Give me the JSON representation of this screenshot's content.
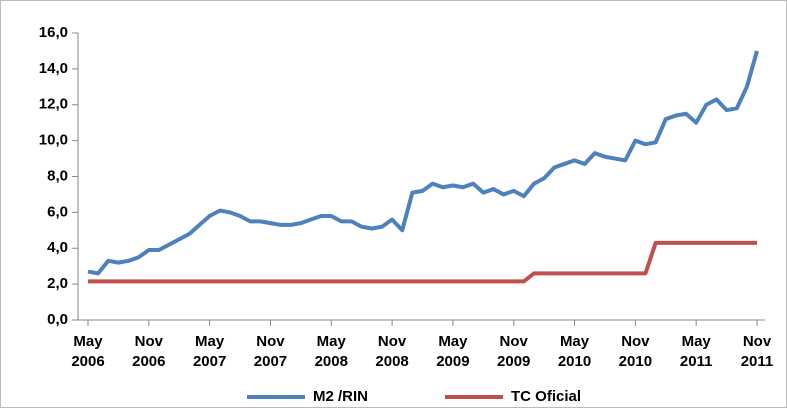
{
  "chart_data": {
    "type": "line",
    "categories": [
      "May 2006",
      null,
      null,
      null,
      null,
      null,
      "Nov 2006",
      null,
      null,
      null,
      null,
      null,
      "May 2007",
      null,
      null,
      null,
      null,
      null,
      "Nov 2007",
      null,
      null,
      null,
      null,
      null,
      "May 2008",
      null,
      null,
      null,
      null,
      null,
      "Nov 2008",
      null,
      null,
      null,
      null,
      null,
      "May 2009",
      null,
      null,
      null,
      null,
      null,
      "Nov 2009",
      null,
      null,
      null,
      null,
      null,
      "May 2010",
      null,
      null,
      null,
      null,
      null,
      "Nov 2010",
      null,
      null,
      null,
      null,
      null,
      "May 2011",
      null,
      null,
      null,
      null,
      null,
      "Nov 2011"
    ],
    "series": [
      {
        "name": "M2 /RIN",
        "color": "#4f81bd",
        "values": [
          2.7,
          2.6,
          3.3,
          3.2,
          3.3,
          3.5,
          3.9,
          3.9,
          4.2,
          4.5,
          4.8,
          5.3,
          5.8,
          6.1,
          6.0,
          5.8,
          5.5,
          5.5,
          5.4,
          5.3,
          5.3,
          5.4,
          5.6,
          5.8,
          5.8,
          5.5,
          5.5,
          5.2,
          5.1,
          5.2,
          5.6,
          5.0,
          7.1,
          7.2,
          7.6,
          7.4,
          7.5,
          7.4,
          7.6,
          7.1,
          7.3,
          7.0,
          7.2,
          6.9,
          7.6,
          7.9,
          8.5,
          8.7,
          8.9,
          8.7,
          9.3,
          9.1,
          9.0,
          8.9,
          10.0,
          9.8,
          9.9,
          11.2,
          11.4,
          11.5,
          11.0,
          12.0,
          12.3,
          11.7,
          11.8,
          13.0,
          15.0
        ]
      },
      {
        "name": "TC Oficial",
        "color": "#c0504d",
        "values": [
          2.15,
          2.15,
          2.15,
          2.15,
          2.15,
          2.15,
          2.15,
          2.15,
          2.15,
          2.15,
          2.15,
          2.15,
          2.15,
          2.15,
          2.15,
          2.15,
          2.15,
          2.15,
          2.15,
          2.15,
          2.15,
          2.15,
          2.15,
          2.15,
          2.15,
          2.15,
          2.15,
          2.15,
          2.15,
          2.15,
          2.15,
          2.15,
          2.15,
          2.15,
          2.15,
          2.15,
          2.15,
          2.15,
          2.15,
          2.15,
          2.15,
          2.15,
          2.15,
          2.15,
          2.6,
          2.6,
          2.6,
          2.6,
          2.6,
          2.6,
          2.6,
          2.6,
          2.6,
          2.6,
          2.6,
          2.6,
          4.3,
          4.3,
          4.3,
          4.3,
          4.3,
          4.3,
          4.3,
          4.3,
          4.3,
          4.3,
          4.3
        ]
      }
    ],
    "ylim": [
      0,
      16
    ],
    "yticks": [
      {
        "value": 0,
        "label": "0,0"
      },
      {
        "value": 2,
        "label": "2,0"
      },
      {
        "value": 4,
        "label": "4,0"
      },
      {
        "value": 6,
        "label": "6,0"
      },
      {
        "value": 8,
        "label": "8,0"
      },
      {
        "value": 10,
        "label": "10,0"
      },
      {
        "value": 12,
        "label": "12,0"
      },
      {
        "value": 14,
        "label": "14,0"
      },
      {
        "value": 16,
        "label": "16,0"
      }
    ],
    "legend": "bottom",
    "grid": false
  }
}
